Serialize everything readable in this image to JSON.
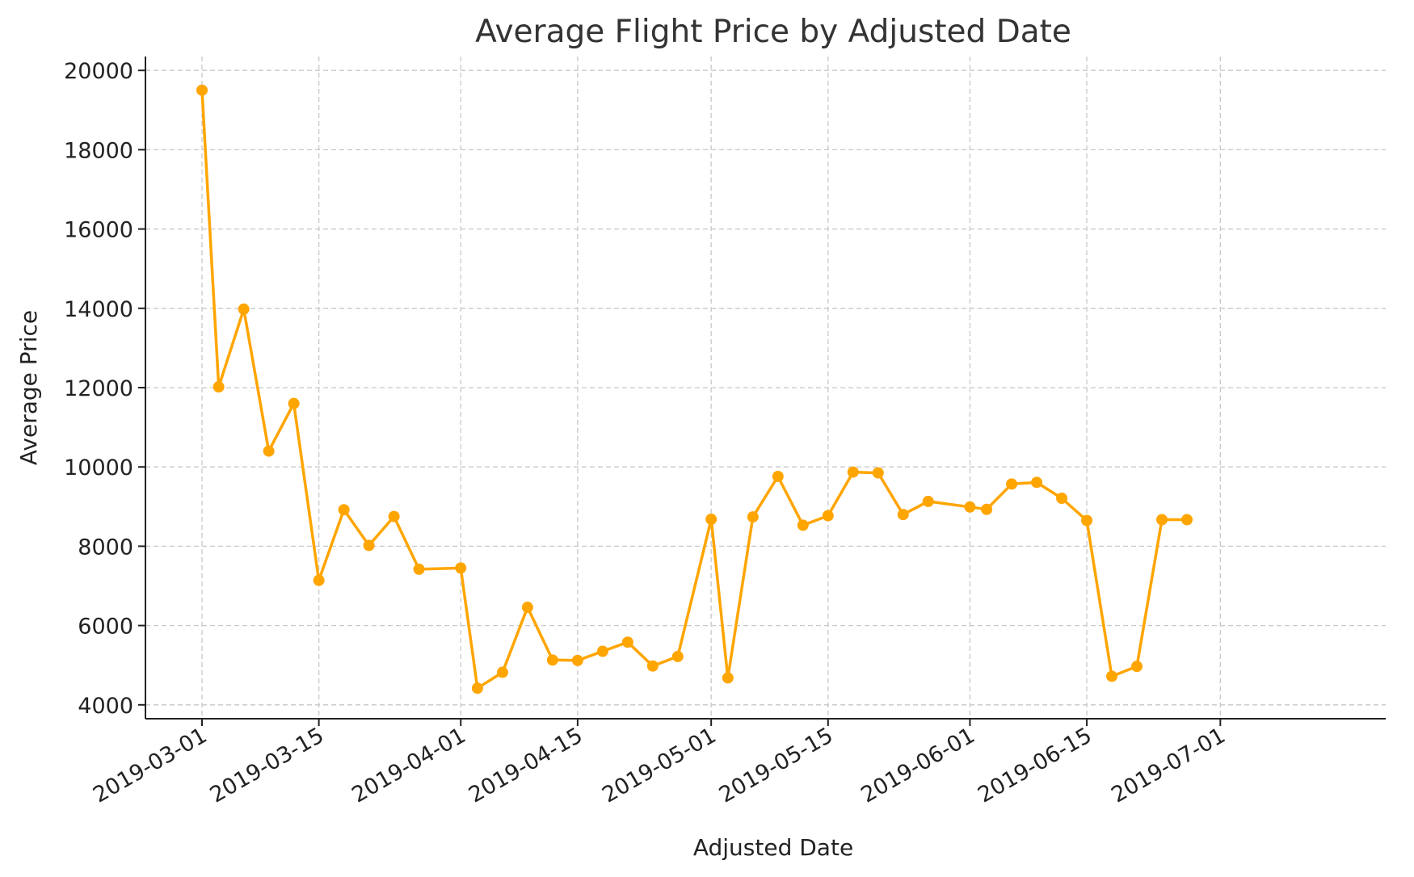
{
  "chart_data": {
    "type": "line",
    "title": "Average Flight Price by Adjusted Date",
    "xlabel": "Adjusted Date",
    "ylabel": "Average Price",
    "ylim": [
      3650,
      20350
    ],
    "xlim": [
      "2019-02-22",
      "2019-07-01"
    ],
    "yticks": [
      4000,
      6000,
      8000,
      10000,
      12000,
      14000,
      16000,
      18000,
      20000
    ],
    "xticks": [
      "2019-03-01",
      "2019-03-15",
      "2019-04-01",
      "2019-04-15",
      "2019-05-01",
      "2019-05-15",
      "2019-06-01",
      "2019-06-15",
      "2019-07-01"
    ],
    "grid": true,
    "legend": "none",
    "color": "#FFA500",
    "series": [
      {
        "points": [
          [
            "2019-03-01",
            19500
          ],
          [
            "2019-03-03",
            12020
          ],
          [
            "2019-03-06",
            13980
          ],
          [
            "2019-03-09",
            10400
          ],
          [
            "2019-03-12",
            11600
          ],
          [
            "2019-03-15",
            7140
          ],
          [
            "2019-03-18",
            8920
          ],
          [
            "2019-03-21",
            8020
          ],
          [
            "2019-03-24",
            8750
          ],
          [
            "2019-03-27",
            7420
          ],
          [
            "2019-04-01",
            7450
          ],
          [
            "2019-04-03",
            4420
          ],
          [
            "2019-04-06",
            4820
          ],
          [
            "2019-04-09",
            6460
          ],
          [
            "2019-04-12",
            5130
          ],
          [
            "2019-04-15",
            5120
          ],
          [
            "2019-04-18",
            5350
          ],
          [
            "2019-04-21",
            5580
          ],
          [
            "2019-04-24",
            4980
          ],
          [
            "2019-04-27",
            5220
          ],
          [
            "2019-05-01",
            8680
          ],
          [
            "2019-05-03",
            4680
          ],
          [
            "2019-05-06",
            8740
          ],
          [
            "2019-05-09",
            9760
          ],
          [
            "2019-05-12",
            8530
          ],
          [
            "2019-05-15",
            8770
          ],
          [
            "2019-05-18",
            9870
          ],
          [
            "2019-05-21",
            9850
          ],
          [
            "2019-05-24",
            8800
          ],
          [
            "2019-05-27",
            9130
          ],
          [
            "2019-06-01",
            8990
          ],
          [
            "2019-06-03",
            8930
          ],
          [
            "2019-06-06",
            9570
          ],
          [
            "2019-06-09",
            9610
          ],
          [
            "2019-06-12",
            9210
          ],
          [
            "2019-06-15",
            8650
          ],
          [
            "2019-06-18",
            4720
          ],
          [
            "2019-06-21",
            4970
          ],
          [
            "2019-06-24",
            8670
          ],
          [
            "2019-06-27",
            8670
          ]
        ]
      }
    ]
  }
}
